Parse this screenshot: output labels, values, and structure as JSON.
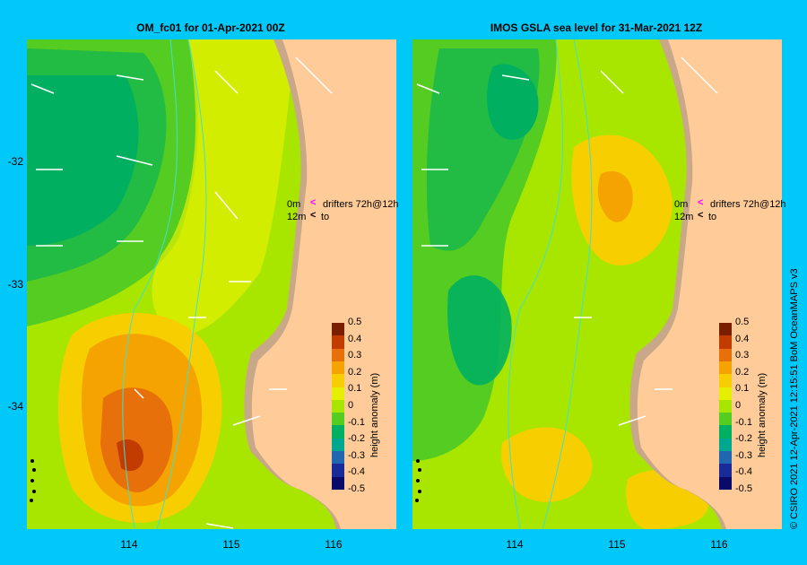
{
  "left_panel": {
    "title": "OM_fc01  for 01-Apr-2021 00Z",
    "y_ticks": [
      "-32",
      "-33",
      "-34"
    ],
    "x_ticks": [
      "114",
      "115",
      "116"
    ]
  },
  "right_panel": {
    "title": "IMOS GSLA sea level  for 31-Mar-2021 12Z",
    "x_ticks": [
      "114",
      "115",
      "116"
    ]
  },
  "drifter_legend": {
    "row1_age": "0m",
    "row1_text": "drifters 72h@12h",
    "row2_age": "12m",
    "row2_text": "to",
    "colors": {
      "head": "#ff00ff",
      "tail": "#000000"
    }
  },
  "colorbar": {
    "label": "height anomaly (m)",
    "ticks": [
      "0.5",
      "0.4",
      "0.3",
      "0.2",
      "0.1",
      "0",
      "-0.1",
      "-0.2",
      "-0.3",
      "-0.4",
      "-0.5"
    ],
    "colors": [
      "#7a1e00",
      "#c23c00",
      "#e8700a",
      "#f5a300",
      "#f7cf00",
      "#e5f000",
      "#a8e600",
      "#55cc22",
      "#00b060",
      "#00a890",
      "#2066b0",
      "#1a2a98",
      "#0a0a6a"
    ]
  },
  "credit": "© CSIRO 2021   12-Apr-2021 12:15:51 BoM OceanMAPS v3",
  "map_colors": {
    "land": "#ffcc99",
    "coast": "#c8a888",
    "shelf_line": "#40e0d0"
  }
}
